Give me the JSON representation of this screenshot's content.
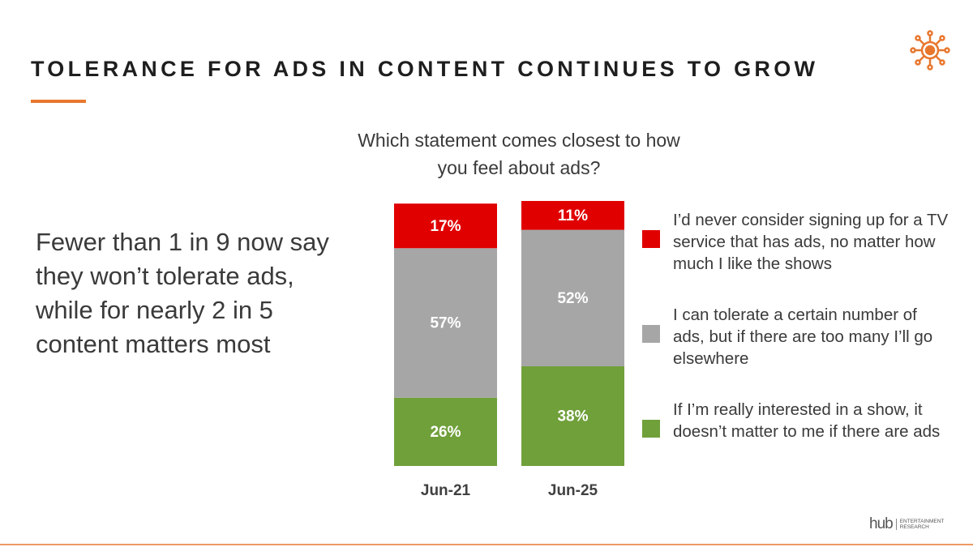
{
  "title": "TOLERANCE FOR ADS IN CONTENT CONTINUES TO GROW",
  "body": "Fewer than 1 in 9 now say they won’t tolerate ads, while for nearly 2 in 5 content matters most",
  "logo": {
    "brand": "hub",
    "tagline": "ENTERTAINMENT RESEARCH"
  },
  "chart_data": {
    "type": "stacked_bar",
    "subtitle": "Which statement comes closest to how you feel about ads?",
    "categories": [
      "Jun-21",
      "Jun-25"
    ],
    "series": [
      {
        "name": "If I’m really interested in a show, it doesn’t matter to me if there are ads",
        "color": "#70a03a",
        "values": [
          26,
          38
        ],
        "value_labels": [
          "26%",
          "38%"
        ]
      },
      {
        "name": "I can tolerate a certain number of ads, but if there are too many I’ll go elsewhere",
        "color": "#a6a6a6",
        "values": [
          57,
          52
        ],
        "value_labels": [
          "57%",
          "52%"
        ]
      },
      {
        "name": "I’d never consider signing up for a TV service that has ads, no matter how much I like the shows",
        "color": "#e00000",
        "values": [
          17,
          11
        ],
        "value_labels": [
          "17%",
          "11%"
        ]
      }
    ]
  }
}
